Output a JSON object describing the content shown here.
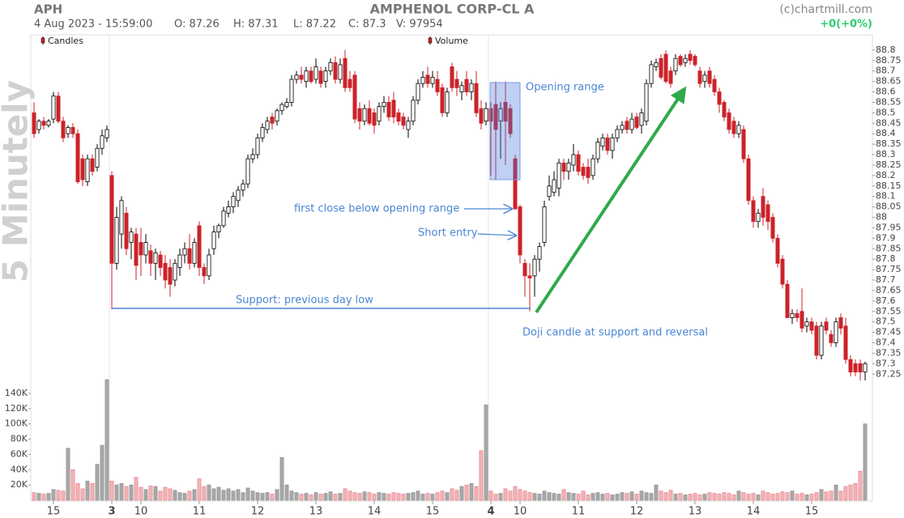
{
  "chart_data": {
    "type": "candlestick",
    "symbol": "APH",
    "title": "AMPHENOL CORP-CL A",
    "timestamp": "4 Aug 2023 - 15:59:00",
    "quote": [
      "O: 87.26",
      "H: 87.31",
      "L: 87.22",
      "C: 87.3",
      "V: 97954"
    ],
    "source": "(c)chartmill.com",
    "change": "+0(+0%)",
    "period_label": "5 Minutely",
    "annotations": [
      "Opening range",
      "first close below opening range",
      "Short entry",
      "Support: previous day low",
      "Doji candle at support and reversal"
    ],
    "categories": [
      null,
      null,
      null,
      null,
      "15",
      null,
      null,
      null,
      null,
      null,
      null,
      null,
      null,
      null,
      null,
      null,
      "3",
      null,
      null,
      null,
      null,
      null,
      "10",
      null,
      null,
      null,
      null,
      null,
      null,
      null,
      null,
      null,
      null,
      null,
      "11",
      null,
      null,
      null,
      null,
      null,
      null,
      null,
      null,
      null,
      null,
      null,
      "12",
      null,
      null,
      null,
      null,
      null,
      null,
      null,
      null,
      null,
      null,
      null,
      "13",
      null,
      null,
      null,
      null,
      null,
      null,
      null,
      null,
      null,
      null,
      null,
      "14",
      null,
      null,
      null,
      null,
      null,
      null,
      null,
      null,
      null,
      null,
      null,
      "15",
      null,
      null,
      null,
      null,
      null,
      null,
      null,
      null,
      null,
      null,
      null,
      "4",
      null,
      null,
      null,
      null,
      null,
      "10",
      null,
      null,
      null,
      null,
      null,
      null,
      null,
      null,
      null,
      null,
      null,
      "11",
      null,
      null,
      null,
      null,
      null,
      null,
      null,
      null,
      null,
      null,
      null,
      "12",
      null,
      null,
      null,
      null,
      null,
      null,
      null,
      null,
      null,
      null,
      null,
      "13",
      null,
      null,
      null,
      null,
      null,
      null,
      null,
      null,
      null,
      null,
      null,
      "14",
      null,
      null,
      null,
      null,
      null,
      null,
      null,
      null,
      null,
      null,
      null,
      "15",
      null,
      null,
      null,
      null,
      null,
      null,
      null,
      null,
      null,
      null,
      null
    ],
    "series": [
      {
        "name": "Candles",
        "up_color": "#ffffff",
        "down_color": "#cc2229",
        "open": [
          88.5,
          88.42,
          88.46,
          88.44,
          88.47,
          88.58,
          88.46,
          88.4,
          88.43,
          88.4,
          88.28,
          88.17,
          88.28,
          88.24,
          88.33,
          88.38,
          88.2,
          87.78,
          87.92,
          88.02,
          87.88,
          87.92,
          87.88,
          87.82,
          87.84,
          87.78,
          87.82,
          87.78,
          87.76,
          87.7,
          87.76,
          87.82,
          87.85,
          87.78,
          87.96,
          87.76,
          87.72,
          87.85,
          87.93,
          87.96,
          88.02,
          88.05,
          88.08,
          88.13,
          88.16,
          88.28,
          88.3,
          88.38,
          88.42,
          88.48,
          88.46,
          88.51,
          88.53,
          88.55,
          88.66,
          88.68,
          88.65,
          88.7,
          88.66,
          88.7,
          88.65,
          88.7,
          88.74,
          88.66,
          88.76,
          88.66,
          88.68,
          88.52,
          88.46,
          88.52,
          88.5,
          88.46,
          88.53,
          88.55,
          88.56,
          88.5,
          88.48,
          88.42,
          88.46,
          88.56,
          88.64,
          88.68,
          88.64,
          88.66,
          88.62,
          88.5,
          88.72,
          88.66,
          88.6,
          88.66,
          88.6,
          88.64,
          88.52,
          88.46,
          88.52,
          88.54,
          88.46,
          88.55,
          88.52,
          88.28,
          88.05,
          87.78,
          87.72,
          87.72,
          87.8,
          87.88,
          88.1,
          88.12,
          88.14,
          88.26,
          88.22,
          88.25,
          88.3,
          88.24,
          88.24,
          88.2,
          88.28,
          88.34,
          88.38,
          88.32,
          88.38,
          88.42,
          88.46,
          88.42,
          88.48,
          88.44,
          88.46,
          88.64,
          88.72,
          88.76,
          88.78,
          88.7,
          88.7,
          88.77,
          88.74,
          88.78,
          88.77,
          88.7,
          88.65,
          88.7,
          88.66,
          88.6,
          88.55,
          88.5,
          88.46,
          88.4,
          88.42,
          88.28,
          88.08,
          87.98,
          88.1,
          88.06,
          88.0,
          87.9,
          87.8,
          87.68,
          87.52,
          87.54,
          87.55,
          87.48,
          87.5,
          87.48,
          87.34,
          87.5,
          87.44,
          87.4,
          87.52,
          87.48,
          87.32,
          87.3,
          87.3,
          87.26
        ],
        "high": [
          88.55,
          88.47,
          88.48,
          88.47,
          88.6,
          88.6,
          88.48,
          88.44,
          88.45,
          88.42,
          88.3,
          88.3,
          88.3,
          88.35,
          88.42,
          88.44,
          88.22,
          88.05,
          88.1,
          88.05,
          87.95,
          87.95,
          87.95,
          87.92,
          87.87,
          87.85,
          87.84,
          87.82,
          87.8,
          87.8,
          87.85,
          87.88,
          87.92,
          87.9,
          87.98,
          87.78,
          87.85,
          87.96,
          87.97,
          88.05,
          88.08,
          88.12,
          88.15,
          88.18,
          88.3,
          88.33,
          88.4,
          88.45,
          88.48,
          88.5,
          88.52,
          88.55,
          88.57,
          88.68,
          88.7,
          88.72,
          88.72,
          88.72,
          88.76,
          88.72,
          88.72,
          88.76,
          88.77,
          88.76,
          88.8,
          88.7,
          88.7,
          88.55,
          88.54,
          88.56,
          88.52,
          88.55,
          88.58,
          88.58,
          88.6,
          88.52,
          88.5,
          88.48,
          88.58,
          88.66,
          88.7,
          88.72,
          88.7,
          88.7,
          88.64,
          88.62,
          88.74,
          88.7,
          88.65,
          88.7,
          88.66,
          88.7,
          88.56,
          88.55,
          88.55,
          88.65,
          88.55,
          88.65,
          88.54,
          88.3,
          88.06,
          87.8,
          87.78,
          87.82,
          87.88,
          88.08,
          88.2,
          88.22,
          88.28,
          88.28,
          88.28,
          88.35,
          88.32,
          88.26,
          88.28,
          88.3,
          88.38,
          88.4,
          88.4,
          88.4,
          88.44,
          88.46,
          88.48,
          88.5,
          88.5,
          88.52,
          88.66,
          88.75,
          88.76,
          88.78,
          88.8,
          88.72,
          88.78,
          88.78,
          88.78,
          88.8,
          88.78,
          88.72,
          88.7,
          88.72,
          88.68,
          88.62,
          88.56,
          88.52,
          88.48,
          88.46,
          88.44,
          88.3,
          88.1,
          88.04,
          88.14,
          88.08,
          88.02,
          87.92,
          87.82,
          87.7,
          87.56,
          87.56,
          87.66,
          87.52,
          87.52,
          87.5,
          87.5,
          87.52,
          87.46,
          87.52,
          87.54,
          87.52,
          87.34,
          87.32,
          87.32,
          87.31
        ],
        "low": [
          88.38,
          88.4,
          88.42,
          88.43,
          88.45,
          88.45,
          88.36,
          88.38,
          88.38,
          88.16,
          88.15,
          88.15,
          88.2,
          88.22,
          88.3,
          88.36,
          87.56,
          87.75,
          87.85,
          87.82,
          87.8,
          87.7,
          87.72,
          87.78,
          87.72,
          87.7,
          87.72,
          87.66,
          87.62,
          87.67,
          87.72,
          87.78,
          87.75,
          87.76,
          87.72,
          87.68,
          87.7,
          87.82,
          87.9,
          87.95,
          88.0,
          88.02,
          88.05,
          88.1,
          88.14,
          88.26,
          88.28,
          88.36,
          88.4,
          88.42,
          88.44,
          88.49,
          88.52,
          88.53,
          88.64,
          88.64,
          88.62,
          88.64,
          88.64,
          88.62,
          88.62,
          88.68,
          88.64,
          88.64,
          88.6,
          88.6,
          88.45,
          88.42,
          88.44,
          88.44,
          88.4,
          88.44,
          88.5,
          88.46,
          88.45,
          88.44,
          88.42,
          88.38,
          88.44,
          88.54,
          88.62,
          88.62,
          88.62,
          88.58,
          88.48,
          88.48,
          88.6,
          88.58,
          88.56,
          88.58,
          88.56,
          88.48,
          88.42,
          88.44,
          88.2,
          88.18,
          88.28,
          88.25,
          88.38,
          88.04,
          87.78,
          87.62,
          87.55,
          87.62,
          87.74,
          87.86,
          88.08,
          88.1,
          88.1,
          88.18,
          88.18,
          88.22,
          88.2,
          88.18,
          88.16,
          88.18,
          88.26,
          88.32,
          88.3,
          88.28,
          88.36,
          88.4,
          88.4,
          88.4,
          88.42,
          88.4,
          88.44,
          88.62,
          88.7,
          88.66,
          88.64,
          88.62,
          88.68,
          88.72,
          88.72,
          88.73,
          88.72,
          88.62,
          88.62,
          88.62,
          88.58,
          88.5,
          88.46,
          88.4,
          88.38,
          88.38,
          88.26,
          88.06,
          87.95,
          87.95,
          87.96,
          87.94,
          87.88,
          87.76,
          87.66,
          87.52,
          87.49,
          87.5,
          87.45,
          87.45,
          87.44,
          87.32,
          87.32,
          87.44,
          87.38,
          87.38,
          87.44,
          87.3,
          87.24,
          87.24,
          87.22,
          87.22
        ],
        "close": [
          88.4,
          88.46,
          88.44,
          88.46,
          88.58,
          88.46,
          88.38,
          88.43,
          88.4,
          88.17,
          88.18,
          88.28,
          88.22,
          88.33,
          88.39,
          88.42,
          87.78,
          88.0,
          88.08,
          87.85,
          87.93,
          87.77,
          87.82,
          87.88,
          87.78,
          87.83,
          87.76,
          87.7,
          87.68,
          87.78,
          87.82,
          87.85,
          87.78,
          87.88,
          87.76,
          87.72,
          87.82,
          87.93,
          87.96,
          88.03,
          88.05,
          88.1,
          88.13,
          88.16,
          88.28,
          88.3,
          88.38,
          88.43,
          88.46,
          88.45,
          88.51,
          88.54,
          88.55,
          88.66,
          88.68,
          88.66,
          88.7,
          88.65,
          88.72,
          88.64,
          88.7,
          88.74,
          88.66,
          88.73,
          88.62,
          88.62,
          88.47,
          88.46,
          88.52,
          88.45,
          88.44,
          88.53,
          88.55,
          88.48,
          88.48,
          88.46,
          88.44,
          88.46,
          88.56,
          88.64,
          88.67,
          88.64,
          88.67,
          88.6,
          88.5,
          88.6,
          88.62,
          88.62,
          88.63,
          88.6,
          88.64,
          88.5,
          88.45,
          88.52,
          88.46,
          88.42,
          88.52,
          88.46,
          88.4,
          88.04,
          87.82,
          87.72,
          87.71,
          87.8,
          87.86,
          88.05,
          88.15,
          88.18,
          88.26,
          88.22,
          88.26,
          88.3,
          88.22,
          88.2,
          88.19,
          88.28,
          88.36,
          88.38,
          88.32,
          88.38,
          88.42,
          88.44,
          88.42,
          88.47,
          88.43,
          88.5,
          88.64,
          88.73,
          88.74,
          88.67,
          88.65,
          88.64,
          88.76,
          88.73,
          88.76,
          88.75,
          88.73,
          88.64,
          88.68,
          88.64,
          88.6,
          88.54,
          88.48,
          88.42,
          88.4,
          88.44,
          88.28,
          88.08,
          87.98,
          88.02,
          88.0,
          87.98,
          87.9,
          87.78,
          87.68,
          87.52,
          87.54,
          87.52,
          87.47,
          87.5,
          87.46,
          87.34,
          87.48,
          87.46,
          87.4,
          87.5,
          87.47,
          87.32,
          87.26,
          87.26,
          87.26,
          87.3
        ]
      },
      {
        "name": "Volume",
        "axis": "y2",
        "up_color": "#a8a8a8",
        "down_color": "#f3b2b6",
        "values": [
          10000,
          9000,
          8000,
          9000,
          14000,
          13000,
          12000,
          68000,
          40000,
          22000,
          15000,
          25000,
          22000,
          47000,
          72000,
          158000,
          25000,
          20000,
          22000,
          18000,
          20000,
          30000,
          17000,
          14000,
          19000,
          18000,
          12000,
          17000,
          15000,
          13000,
          10000,
          9000,
          12000,
          14000,
          28000,
          18000,
          20000,
          15000,
          17000,
          13000,
          15000,
          12000,
          14000,
          10000,
          16000,
          12000,
          10000,
          9000,
          10000,
          8000,
          14000,
          56000,
          20000,
          12000,
          10000,
          8000,
          9000,
          7000,
          10000,
          8000,
          9000,
          11000,
          8000,
          9000,
          15000,
          12000,
          10000,
          9000,
          11000,
          10000,
          8000,
          10000,
          9000,
          8000,
          10000,
          9000,
          8000,
          9000,
          10000,
          12000,
          8000,
          9000,
          8000,
          10000,
          12000,
          10000,
          15000,
          13000,
          18000,
          20000,
          22000,
          18000,
          65000,
          125000,
          12000,
          8000,
          9000,
          15000,
          12000,
          18000,
          14000,
          12000,
          10000,
          9000,
          8000,
          12000,
          10000,
          9000,
          8000,
          14000,
          10000,
          9000,
          8000,
          12000,
          7000,
          9000,
          10000,
          8000,
          9000,
          7000,
          8000,
          10000,
          9000,
          11000,
          8000,
          12000,
          10000,
          9000,
          20000,
          12000,
          10000,
          13000,
          8000,
          9000,
          7000,
          8000,
          9000,
          7000,
          8000,
          10000,
          9000,
          8000,
          10000,
          9000,
          7000,
          12000,
          10000,
          8000,
          9000,
          7000,
          12000,
          10000,
          8000,
          9000,
          11000,
          10000,
          12000,
          8000,
          9000,
          7000,
          8000,
          10000,
          14000,
          11000,
          12000,
          20000,
          12000,
          18000,
          20000,
          22000,
          38000,
          100000
        ]
      }
    ],
    "ylim": [
      87.22,
      88.873
    ],
    "yticks": [
      87.25,
      87.3,
      87.35,
      87.4,
      87.45,
      87.5,
      87.55,
      87.6,
      87.65,
      87.7,
      87.75,
      87.8,
      87.85,
      87.9,
      87.95,
      88,
      88.05,
      88.1,
      88.15,
      88.2,
      88.25,
      88.3,
      88.35,
      88.4,
      88.45,
      88.5,
      88.55,
      88.6,
      88.65,
      88.7,
      88.75,
      88.8
    ],
    "y2lim": [
      0,
      148500
    ],
    "y2ticks": [
      {
        "value": 20000,
        "label": "20K"
      },
      {
        "value": 40000,
        "label": "40K"
      },
      {
        "value": 60000,
        "label": "60K"
      },
      {
        "value": 80000,
        "label": "80K"
      },
      {
        "value": 100000,
        "label": "100K"
      },
      {
        "value": 120000,
        "label": "120K"
      },
      {
        "value": 140000,
        "label": "140K"
      }
    ],
    "grid": false
  }
}
